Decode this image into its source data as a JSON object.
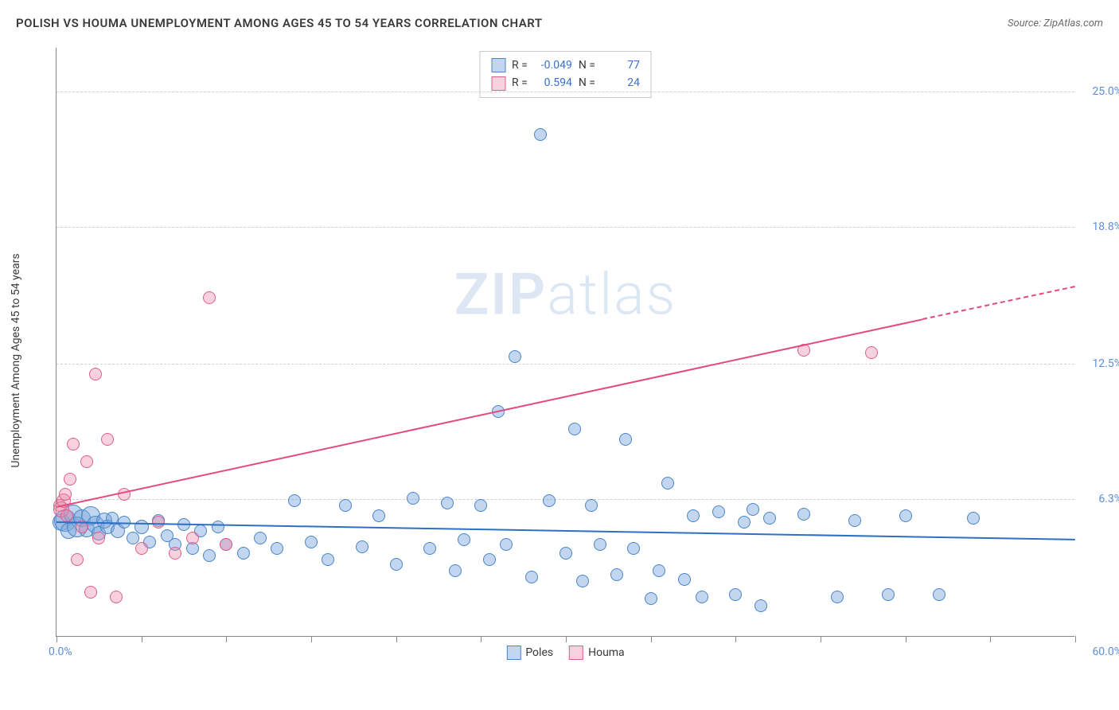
{
  "header": {
    "title": "POLISH VS HOUMA UNEMPLOYMENT AMONG AGES 45 TO 54 YEARS CORRELATION CHART",
    "source": "Source: ZipAtlas.com"
  },
  "chart": {
    "type": "scatter",
    "y_axis_label": "Unemployment Among Ages 45 to 54 years",
    "xlim": [
      0,
      60
    ],
    "ylim": [
      0,
      27
    ],
    "x_min_label": "0.0%",
    "x_max_label": "60.0%",
    "y_ticks": [
      {
        "value": 6.3,
        "label": "6.3%"
      },
      {
        "value": 12.5,
        "label": "12.5%"
      },
      {
        "value": 18.8,
        "label": "18.8%"
      },
      {
        "value": 25.0,
        "label": "25.0%"
      }
    ],
    "x_tick_positions": [
      0,
      5,
      10,
      15,
      20,
      25,
      30,
      35,
      40,
      45,
      50,
      55,
      60
    ],
    "grid_color": "#d0d0d0",
    "axis_color": "#888888",
    "background_color": "#ffffff",
    "watermark": {
      "bold": "ZIP",
      "light": "atlas",
      "color": "rgba(120,160,210,0.25)",
      "fontsize": 72
    },
    "series": [
      {
        "name": "Poles",
        "fill": "rgba(120,165,220,0.45)",
        "stroke": "#4a85c9",
        "trend_color": "#2f6fc4",
        "trend": {
          "x1": 0,
          "y1": 5.3,
          "x2": 60,
          "y2": 4.5
        },
        "R": "-0.049",
        "N": "77",
        "points": [
          {
            "x": 0.3,
            "y": 5.2,
            "r": 11
          },
          {
            "x": 0.5,
            "y": 5.3,
            "r": 14
          },
          {
            "x": 0.7,
            "y": 4.8,
            "r": 10
          },
          {
            "x": 1.0,
            "y": 5.6,
            "r": 12
          },
          {
            "x": 1.2,
            "y": 5.0,
            "r": 13
          },
          {
            "x": 1.5,
            "y": 5.4,
            "r": 11
          },
          {
            "x": 1.8,
            "y": 4.9,
            "r": 10
          },
          {
            "x": 2.0,
            "y": 5.5,
            "r": 12
          },
          {
            "x": 2.3,
            "y": 5.1,
            "r": 11
          },
          {
            "x": 2.5,
            "y": 4.7,
            "r": 9
          },
          {
            "x": 2.8,
            "y": 5.3,
            "r": 10
          },
          {
            "x": 3.0,
            "y": 5.0,
            "r": 9
          },
          {
            "x": 3.3,
            "y": 5.4,
            "r": 8
          },
          {
            "x": 3.6,
            "y": 4.8,
            "r": 9
          },
          {
            "x": 4.0,
            "y": 5.2,
            "r": 8
          },
          {
            "x": 4.5,
            "y": 4.5,
            "r": 8
          },
          {
            "x": 5.0,
            "y": 5.0,
            "r": 9
          },
          {
            "x": 5.5,
            "y": 4.3,
            "r": 8
          },
          {
            "x": 6.0,
            "y": 5.3,
            "r": 8
          },
          {
            "x": 6.5,
            "y": 4.6,
            "r": 8
          },
          {
            "x": 7.0,
            "y": 4.2,
            "r": 8
          },
          {
            "x": 7.5,
            "y": 5.1,
            "r": 8
          },
          {
            "x": 8.0,
            "y": 4.0,
            "r": 8
          },
          {
            "x": 8.5,
            "y": 4.8,
            "r": 8
          },
          {
            "x": 9.0,
            "y": 3.7,
            "r": 8
          },
          {
            "x": 9.5,
            "y": 5.0,
            "r": 8
          },
          {
            "x": 10.0,
            "y": 4.2,
            "r": 8
          },
          {
            "x": 11.0,
            "y": 3.8,
            "r": 8
          },
          {
            "x": 12.0,
            "y": 4.5,
            "r": 8
          },
          {
            "x": 13.0,
            "y": 4.0,
            "r": 8
          },
          {
            "x": 14.0,
            "y": 6.2,
            "r": 8
          },
          {
            "x": 15.0,
            "y": 4.3,
            "r": 8
          },
          {
            "x": 16.0,
            "y": 3.5,
            "r": 8
          },
          {
            "x": 17.0,
            "y": 6.0,
            "r": 8
          },
          {
            "x": 18.0,
            "y": 4.1,
            "r": 8
          },
          {
            "x": 19.0,
            "y": 5.5,
            "r": 8
          },
          {
            "x": 20.0,
            "y": 3.3,
            "r": 8
          },
          {
            "x": 21.0,
            "y": 6.3,
            "r": 8
          },
          {
            "x": 22.0,
            "y": 4.0,
            "r": 8
          },
          {
            "x": 23.0,
            "y": 6.1,
            "r": 8
          },
          {
            "x": 23.5,
            "y": 3.0,
            "r": 8
          },
          {
            "x": 24.0,
            "y": 4.4,
            "r": 8
          },
          {
            "x": 25.0,
            "y": 6.0,
            "r": 8
          },
          {
            "x": 25.5,
            "y": 3.5,
            "r": 8
          },
          {
            "x": 26.0,
            "y": 10.3,
            "r": 8
          },
          {
            "x": 26.5,
            "y": 4.2,
            "r": 8
          },
          {
            "x": 27.0,
            "y": 12.8,
            "r": 8
          },
          {
            "x": 28.0,
            "y": 2.7,
            "r": 8
          },
          {
            "x": 28.5,
            "y": 23.0,
            "r": 8
          },
          {
            "x": 29.0,
            "y": 6.2,
            "r": 8
          },
          {
            "x": 30.0,
            "y": 3.8,
            "r": 8
          },
          {
            "x": 30.5,
            "y": 9.5,
            "r": 8
          },
          {
            "x": 31.0,
            "y": 2.5,
            "r": 8
          },
          {
            "x": 31.5,
            "y": 6.0,
            "r": 8
          },
          {
            "x": 32.0,
            "y": 4.2,
            "r": 8
          },
          {
            "x": 33.0,
            "y": 2.8,
            "r": 8
          },
          {
            "x": 33.5,
            "y": 9.0,
            "r": 8
          },
          {
            "x": 34.0,
            "y": 4.0,
            "r": 8
          },
          {
            "x": 35.0,
            "y": 1.7,
            "r": 8
          },
          {
            "x": 35.5,
            "y": 3.0,
            "r": 8
          },
          {
            "x": 36.0,
            "y": 7.0,
            "r": 8
          },
          {
            "x": 37.0,
            "y": 2.6,
            "r": 8
          },
          {
            "x": 37.5,
            "y": 5.5,
            "r": 8
          },
          {
            "x": 38.0,
            "y": 1.8,
            "r": 8
          },
          {
            "x": 39.0,
            "y": 5.7,
            "r": 8
          },
          {
            "x": 40.0,
            "y": 1.9,
            "r": 8
          },
          {
            "x": 40.5,
            "y": 5.2,
            "r": 8
          },
          {
            "x": 41.0,
            "y": 5.8,
            "r": 8
          },
          {
            "x": 41.5,
            "y": 1.4,
            "r": 8
          },
          {
            "x": 42.0,
            "y": 5.4,
            "r": 8
          },
          {
            "x": 44.0,
            "y": 5.6,
            "r": 8
          },
          {
            "x": 46.0,
            "y": 1.8,
            "r": 8
          },
          {
            "x": 47.0,
            "y": 5.3,
            "r": 8
          },
          {
            "x": 49.0,
            "y": 1.9,
            "r": 8
          },
          {
            "x": 50.0,
            "y": 5.5,
            "r": 8
          },
          {
            "x": 52.0,
            "y": 1.9,
            "r": 8
          },
          {
            "x": 54.0,
            "y": 5.4,
            "r": 8
          }
        ]
      },
      {
        "name": "Houma",
        "fill": "rgba(235,140,170,0.40)",
        "stroke": "#dd5f8b",
        "trend_color": "#e14b82",
        "trend": {
          "x1": 0,
          "y1": 6.0,
          "x2": 51,
          "y2": 14.6
        },
        "trend_dashed": {
          "x1": 51,
          "y1": 14.6,
          "x2": 60,
          "y2": 16.1
        },
        "R": "0.594",
        "N": "24",
        "points": [
          {
            "x": 0.2,
            "y": 6.0,
            "r": 8
          },
          {
            "x": 0.3,
            "y": 5.8,
            "r": 10
          },
          {
            "x": 0.4,
            "y": 6.2,
            "r": 9
          },
          {
            "x": 0.5,
            "y": 6.5,
            "r": 8
          },
          {
            "x": 0.6,
            "y": 5.5,
            "r": 8
          },
          {
            "x": 0.8,
            "y": 7.2,
            "r": 8
          },
          {
            "x": 1.0,
            "y": 8.8,
            "r": 8
          },
          {
            "x": 1.2,
            "y": 3.5,
            "r": 8
          },
          {
            "x": 1.5,
            "y": 5.0,
            "r": 8
          },
          {
            "x": 1.8,
            "y": 8.0,
            "r": 8
          },
          {
            "x": 2.0,
            "y": 2.0,
            "r": 8
          },
          {
            "x": 2.3,
            "y": 12.0,
            "r": 8
          },
          {
            "x": 2.5,
            "y": 4.5,
            "r": 8
          },
          {
            "x": 3.0,
            "y": 9.0,
            "r": 8
          },
          {
            "x": 3.5,
            "y": 1.8,
            "r": 8
          },
          {
            "x": 4.0,
            "y": 6.5,
            "r": 8
          },
          {
            "x": 5.0,
            "y": 4.0,
            "r": 8
          },
          {
            "x": 6.0,
            "y": 5.2,
            "r": 8
          },
          {
            "x": 7.0,
            "y": 3.8,
            "r": 8
          },
          {
            "x": 8.0,
            "y": 4.5,
            "r": 8
          },
          {
            "x": 9.0,
            "y": 15.5,
            "r": 8
          },
          {
            "x": 10.0,
            "y": 4.2,
            "r": 8
          },
          {
            "x": 44.0,
            "y": 13.1,
            "r": 8
          },
          {
            "x": 48.0,
            "y": 13.0,
            "r": 8
          }
        ]
      }
    ],
    "legend_swatches": {
      "poles": {
        "fill": "rgba(120,165,220,0.45)",
        "border": "#4a85c9"
      },
      "houma": {
        "fill": "rgba(235,140,170,0.40)",
        "border": "#dd5f8b"
      }
    },
    "stats_labels": {
      "R": "R =",
      "N": "N ="
    }
  },
  "bottom_legend": [
    {
      "label": "Poles",
      "fill": "rgba(120,165,220,0.45)",
      "border": "#4a85c9"
    },
    {
      "label": "Houma",
      "fill": "rgba(235,140,170,0.40)",
      "border": "#dd5f8b"
    }
  ]
}
